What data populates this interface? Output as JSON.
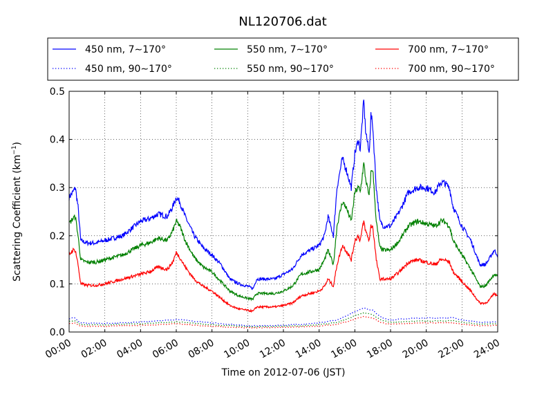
{
  "chart_data": {
    "type": "line",
    "title": "NL120706.dat",
    "xlabel": "Time on 2012-07-06 (JST)",
    "ylabel": "Scattering Coefficient (km",
    "ylabel_sup": "−1",
    "ylabel_close": ")",
    "xlim": [
      0,
      24
    ],
    "ylim": [
      0,
      0.5
    ],
    "grid": true,
    "legend_position": "top (above plot)",
    "x_ticks": [
      0,
      2,
      4,
      6,
      8,
      10,
      12,
      14,
      16,
      18,
      20,
      22,
      24
    ],
    "x_tick_labels": [
      "00:00",
      "02:00",
      "04:00",
      "06:00",
      "08:00",
      "10:00",
      "12:00",
      "14:00",
      "16:00",
      "18:00",
      "20:00",
      "22:00",
      "24:00"
    ],
    "y_ticks": [
      0.0,
      0.1,
      0.2,
      0.3,
      0.4,
      0.5
    ],
    "y_tick_labels": [
      "0.0",
      "0.1",
      "0.2",
      "0.3",
      "0.4",
      "0.5"
    ],
    "series": [
      {
        "name": "450 nm, 7∼170°",
        "color": "#0000ff",
        "style": "solid",
        "x": [
          0.0,
          0.2,
          0.35,
          0.5,
          0.65,
          1.0,
          1.5,
          2.0,
          2.5,
          3.0,
          3.5,
          4.0,
          4.5,
          5.0,
          5.5,
          5.8,
          6.0,
          6.2,
          6.5,
          7.0,
          7.5,
          8.0,
          8.5,
          9.0,
          9.5,
          10.0,
          10.3,
          10.5,
          11.0,
          11.5,
          12.0,
          12.5,
          13.0,
          13.5,
          14.0,
          14.3,
          14.5,
          14.8,
          15.0,
          15.3,
          15.5,
          15.8,
          16.0,
          16.2,
          16.3,
          16.5,
          16.6,
          16.8,
          16.9,
          17.0,
          17.2,
          17.4,
          17.6,
          18.0,
          18.5,
          19.0,
          19.5,
          20.0,
          20.5,
          20.8,
          21.0,
          21.3,
          21.5,
          22.0,
          22.5,
          23.0,
          23.3,
          23.5,
          23.8,
          24.0
        ],
        "y": [
          0.28,
          0.29,
          0.3,
          0.26,
          0.19,
          0.185,
          0.185,
          0.19,
          0.195,
          0.2,
          0.215,
          0.23,
          0.235,
          0.245,
          0.24,
          0.26,
          0.28,
          0.27,
          0.24,
          0.2,
          0.175,
          0.16,
          0.14,
          0.11,
          0.1,
          0.095,
          0.09,
          0.11,
          0.11,
          0.11,
          0.12,
          0.13,
          0.16,
          0.17,
          0.18,
          0.2,
          0.24,
          0.2,
          0.3,
          0.36,
          0.34,
          0.3,
          0.37,
          0.4,
          0.38,
          0.48,
          0.42,
          0.37,
          0.45,
          0.43,
          0.3,
          0.23,
          0.22,
          0.22,
          0.25,
          0.29,
          0.3,
          0.3,
          0.29,
          0.31,
          0.31,
          0.3,
          0.26,
          0.22,
          0.19,
          0.14,
          0.14,
          0.15,
          0.17,
          0.16
        ]
      },
      {
        "name": "550 nm, 7∼170°",
        "color": "#008000",
        "style": "solid",
        "x": [
          0.0,
          0.2,
          0.35,
          0.5,
          0.65,
          1.0,
          1.5,
          2.0,
          2.5,
          3.0,
          3.5,
          4.0,
          4.5,
          5.0,
          5.5,
          5.8,
          6.0,
          6.2,
          6.5,
          7.0,
          7.5,
          8.0,
          8.5,
          9.0,
          9.5,
          10.0,
          10.3,
          10.5,
          11.0,
          11.5,
          12.0,
          12.5,
          13.0,
          13.5,
          14.0,
          14.3,
          14.5,
          14.8,
          15.0,
          15.3,
          15.5,
          15.8,
          16.0,
          16.2,
          16.3,
          16.5,
          16.6,
          16.8,
          16.9,
          17.0,
          17.2,
          17.4,
          17.6,
          18.0,
          18.5,
          19.0,
          19.5,
          20.0,
          20.5,
          20.8,
          21.0,
          21.3,
          21.5,
          22.0,
          22.5,
          23.0,
          23.3,
          23.5,
          23.8,
          24.0
        ],
        "y": [
          0.225,
          0.235,
          0.24,
          0.2,
          0.15,
          0.145,
          0.145,
          0.15,
          0.155,
          0.16,
          0.17,
          0.18,
          0.185,
          0.195,
          0.19,
          0.21,
          0.23,
          0.22,
          0.19,
          0.155,
          0.135,
          0.125,
          0.105,
          0.085,
          0.075,
          0.07,
          0.068,
          0.08,
          0.08,
          0.08,
          0.085,
          0.095,
          0.12,
          0.125,
          0.13,
          0.15,
          0.17,
          0.14,
          0.22,
          0.27,
          0.26,
          0.23,
          0.29,
          0.3,
          0.29,
          0.35,
          0.32,
          0.28,
          0.33,
          0.34,
          0.23,
          0.175,
          0.17,
          0.17,
          0.19,
          0.22,
          0.23,
          0.225,
          0.22,
          0.23,
          0.23,
          0.22,
          0.19,
          0.16,
          0.13,
          0.095,
          0.095,
          0.105,
          0.12,
          0.115
        ]
      },
      {
        "name": "700 nm, 7∼170°",
        "color": "#ff0000",
        "style": "solid",
        "x": [
          0.0,
          0.2,
          0.35,
          0.5,
          0.65,
          1.0,
          1.5,
          2.0,
          2.5,
          3.0,
          3.5,
          4.0,
          4.5,
          5.0,
          5.5,
          5.8,
          6.0,
          6.2,
          6.5,
          7.0,
          7.5,
          8.0,
          8.5,
          9.0,
          9.5,
          10.0,
          10.3,
          10.5,
          11.0,
          11.5,
          12.0,
          12.5,
          13.0,
          13.5,
          14.0,
          14.3,
          14.5,
          14.8,
          15.0,
          15.3,
          15.5,
          15.8,
          16.0,
          16.2,
          16.3,
          16.5,
          16.6,
          16.8,
          16.9,
          17.0,
          17.2,
          17.4,
          17.6,
          18.0,
          18.5,
          19.0,
          19.5,
          20.0,
          20.5,
          20.8,
          21.0,
          21.3,
          21.5,
          22.0,
          22.5,
          23.0,
          23.3,
          23.5,
          23.8,
          24.0
        ],
        "y": [
          0.16,
          0.17,
          0.17,
          0.14,
          0.1,
          0.097,
          0.097,
          0.1,
          0.105,
          0.11,
          0.115,
          0.12,
          0.125,
          0.135,
          0.13,
          0.145,
          0.165,
          0.155,
          0.135,
          0.11,
          0.095,
          0.085,
          0.07,
          0.055,
          0.048,
          0.045,
          0.043,
          0.052,
          0.052,
          0.052,
          0.055,
          0.06,
          0.075,
          0.08,
          0.085,
          0.095,
          0.11,
          0.095,
          0.14,
          0.18,
          0.17,
          0.15,
          0.19,
          0.2,
          0.19,
          0.23,
          0.21,
          0.19,
          0.22,
          0.22,
          0.15,
          0.11,
          0.11,
          0.11,
          0.125,
          0.145,
          0.15,
          0.145,
          0.14,
          0.15,
          0.15,
          0.145,
          0.125,
          0.105,
          0.085,
          0.06,
          0.06,
          0.065,
          0.08,
          0.075
        ]
      },
      {
        "name": "450 nm, 90∼170°",
        "color": "#0000ff",
        "style": "dotted",
        "x": [
          0.0,
          0.3,
          0.6,
          1.0,
          2.0,
          3.0,
          4.0,
          5.0,
          6.0,
          6.5,
          7.0,
          8.0,
          9.0,
          10.0,
          11.0,
          12.0,
          13.0,
          14.0,
          15.0,
          15.5,
          16.0,
          16.5,
          17.0,
          17.5,
          18.0,
          19.0,
          20.0,
          21.0,
          21.5,
          22.0,
          23.0,
          24.0
        ],
        "y": [
          0.028,
          0.03,
          0.02,
          0.018,
          0.018,
          0.019,
          0.021,
          0.023,
          0.026,
          0.025,
          0.022,
          0.019,
          0.016,
          0.013,
          0.013,
          0.014,
          0.016,
          0.019,
          0.025,
          0.033,
          0.042,
          0.05,
          0.045,
          0.03,
          0.025,
          0.028,
          0.029,
          0.029,
          0.03,
          0.025,
          0.02,
          0.021
        ]
      },
      {
        "name": "550 nm, 90∼170°",
        "color": "#008000",
        "style": "dotted",
        "x": [
          0.0,
          0.3,
          0.6,
          1.0,
          2.0,
          3.0,
          4.0,
          5.0,
          6.0,
          6.5,
          7.0,
          8.0,
          9.0,
          10.0,
          11.0,
          12.0,
          13.0,
          14.0,
          15.0,
          15.5,
          16.0,
          16.5,
          17.0,
          17.5,
          18.0,
          19.0,
          20.0,
          21.0,
          21.5,
          22.0,
          23.0,
          24.0
        ],
        "y": [
          0.022,
          0.024,
          0.016,
          0.015,
          0.015,
          0.016,
          0.017,
          0.019,
          0.021,
          0.02,
          0.018,
          0.015,
          0.013,
          0.011,
          0.011,
          0.012,
          0.013,
          0.015,
          0.02,
          0.026,
          0.034,
          0.04,
          0.036,
          0.024,
          0.02,
          0.022,
          0.023,
          0.023,
          0.024,
          0.02,
          0.016,
          0.017
        ]
      },
      {
        "name": "700 nm, 90∼170°",
        "color": "#ff0000",
        "style": "dotted",
        "x": [
          0.0,
          0.3,
          0.6,
          1.0,
          2.0,
          3.0,
          4.0,
          5.0,
          6.0,
          6.5,
          7.0,
          8.0,
          9.0,
          10.0,
          11.0,
          12.0,
          13.0,
          14.0,
          15.0,
          15.5,
          16.0,
          16.5,
          17.0,
          17.5,
          18.0,
          19.0,
          20.0,
          21.0,
          21.5,
          22.0,
          23.0,
          24.0
        ],
        "y": [
          0.017,
          0.019,
          0.013,
          0.012,
          0.012,
          0.013,
          0.014,
          0.015,
          0.017,
          0.016,
          0.014,
          0.012,
          0.01,
          0.009,
          0.009,
          0.01,
          0.011,
          0.012,
          0.016,
          0.021,
          0.027,
          0.032,
          0.029,
          0.019,
          0.016,
          0.018,
          0.019,
          0.019,
          0.019,
          0.016,
          0.013,
          0.014
        ]
      }
    ]
  }
}
